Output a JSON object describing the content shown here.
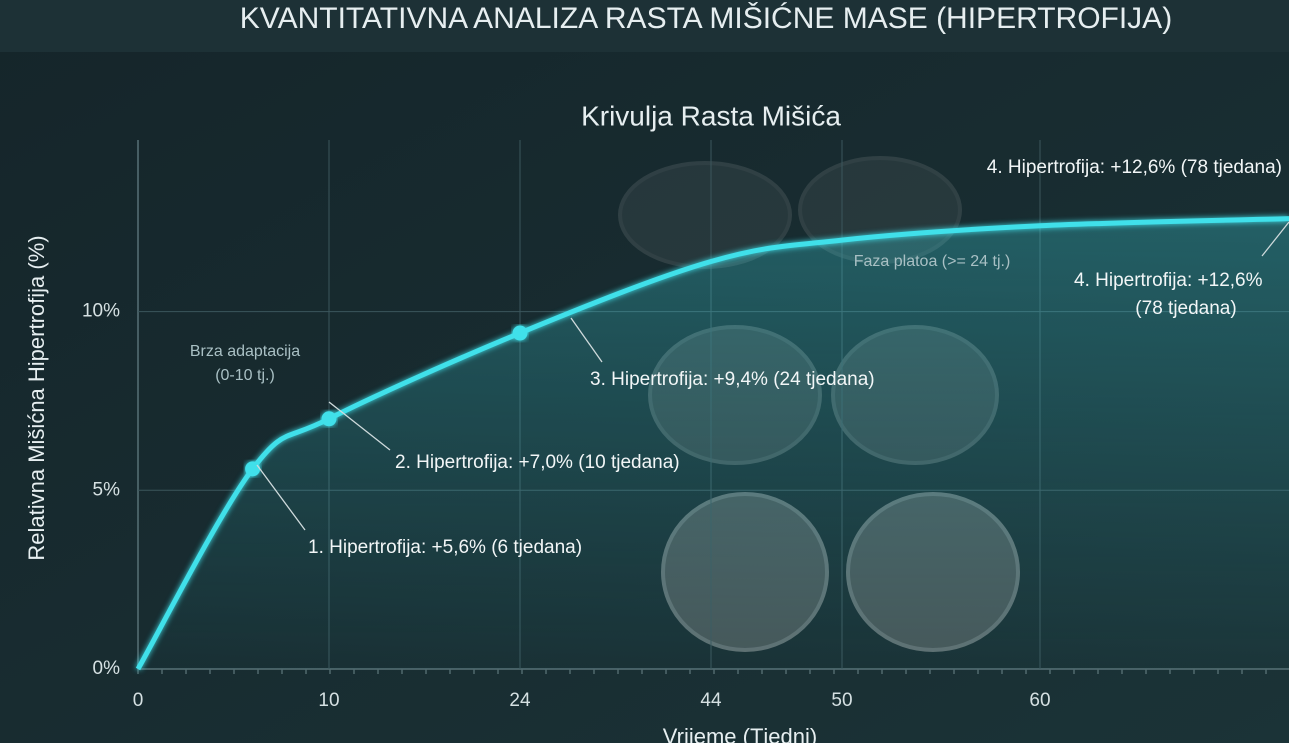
{
  "chart_data": {
    "type": "line",
    "header": "KVANTITATIVNA ANALIZA RASTA MIŠIĆNE MASE (HIPERTROFIJA)",
    "title": "Krivulja Rasta Mišića",
    "x_label": "Vrijeme (Tjedni)",
    "y_label": "Relativna Mišićna Hipertrofija (%)",
    "xlim": [
      0,
      78
    ],
    "xticks": [
      0,
      10,
      24,
      44,
      50,
      60
    ],
    "ylim": [
      0,
      14.8
    ],
    "yticks": [
      {
        "value": 0,
        "label": "0%"
      },
      {
        "value": 5,
        "label": "5%"
      },
      {
        "value": 10,
        "label": "10%"
      }
    ],
    "grid": true,
    "series": [
      {
        "name": "Krivulja",
        "color": "#3fe0ea",
        "x": [
          0,
          6,
          10,
          24,
          44,
          50,
          60,
          78
        ],
        "values": [
          0,
          5.6,
          7.0,
          9.4,
          11.4,
          12.0,
          12.4,
          12.6
        ]
      }
    ],
    "highlights": {
      "x": [
        6,
        10,
        24
      ],
      "values": [
        5.6,
        7.0,
        9.4
      ]
    },
    "annotations": [
      "1. Hipertrofija: +5,6% (6 tjedana)",
      "2. Hipertrofija: +7,0% (10 tjedana)",
      "3. Hipertrofija: +9,4% (24 tjedana)",
      "4. Hipertrofija: +12,6% (78 tjedana)",
      "4. Hipertrofija: +12,6%",
      "(78 tjedana)",
      "Brza adaptacija",
      "(0-10 tj.)",
      "Faza platoa (>= 24 tj.)"
    ]
  }
}
